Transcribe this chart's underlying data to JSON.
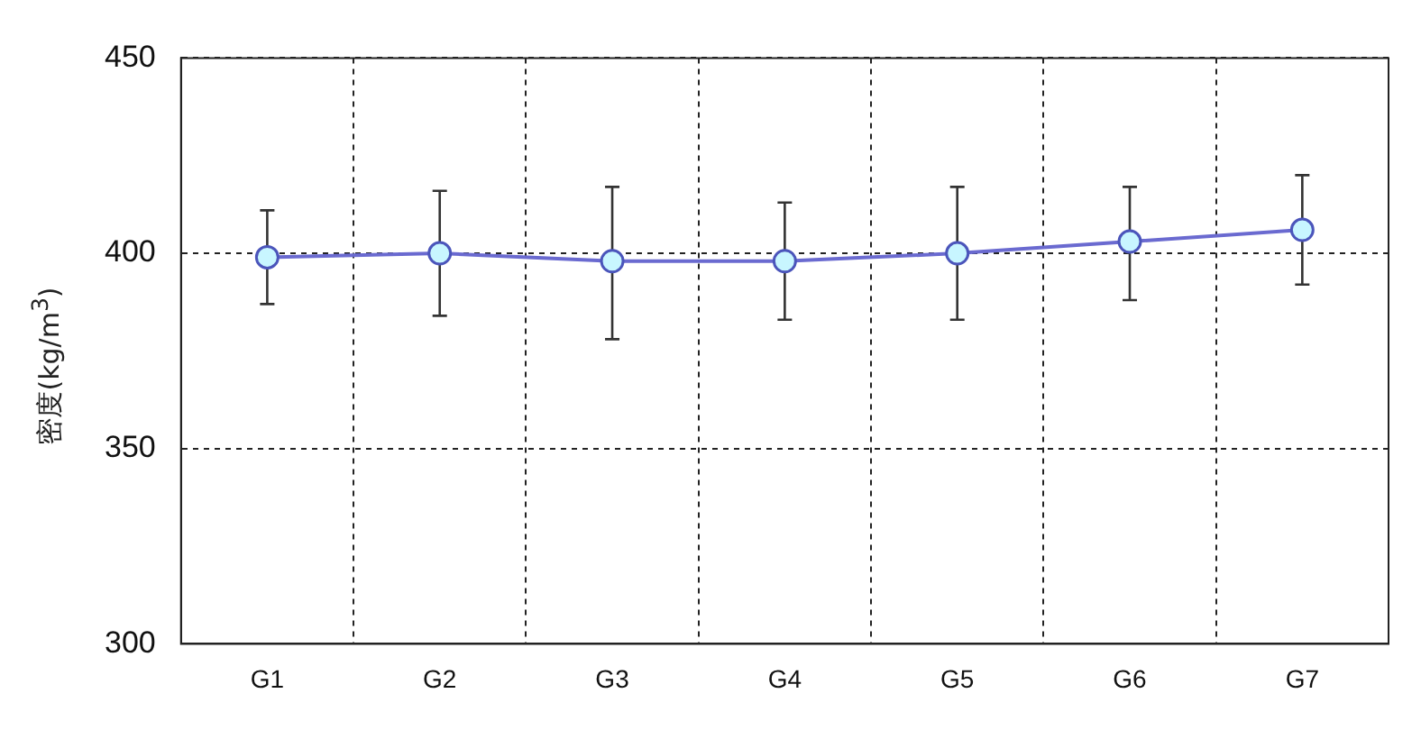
{
  "chart_data": {
    "type": "line",
    "ylabel": "密度(kg/m$^{3}$)",
    "categories": [
      "G1",
      "G2",
      "G3",
      "G4",
      "G5",
      "G6",
      "G7"
    ],
    "series": [
      {
        "color": "#6a6ad0",
        "values": [
          399,
          400,
          398,
          398,
          400,
          403,
          406
        ],
        "errors": [
          [
            387,
            411
          ],
          [
            384,
            416
          ],
          [
            378,
            417
          ],
          [
            383,
            413
          ],
          [
            383,
            417
          ],
          [
            388,
            417
          ],
          [
            392,
            420
          ]
        ]
      }
    ],
    "ylim": [
      300,
      450
    ],
    "yticks": [
      300,
      350,
      400,
      450
    ],
    "grid": true,
    "marker": "circle",
    "line_style": "solid"
  }
}
